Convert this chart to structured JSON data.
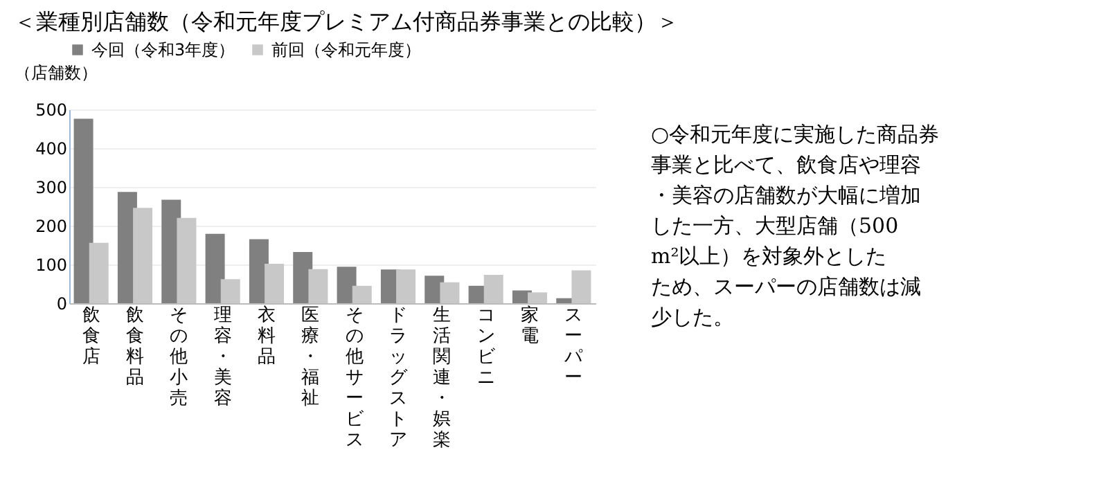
{
  "chart_data": {
    "type": "bar",
    "title": "＜業種別店舗数（令和元年度プレミアム付商品券事業との比較）＞",
    "ylabel": "（店舗数）",
    "categories": [
      "飲食店",
      "飲食料品",
      "その他小売",
      "理容・美容",
      "衣料品",
      "医療・福祉",
      "その他サービス",
      "ドラッグストア",
      "生活関連・娯楽",
      "コンビニ",
      "家電",
      "スーパー"
    ],
    "series": [
      {
        "name": "今回（令和3年度）",
        "color": "#808080",
        "values": [
          476,
          287,
          267,
          179,
          165,
          132,
          94,
          87,
          71,
          45,
          33,
          13
        ]
      },
      {
        "name": "前回（令和元年度）",
        "color": "#c8c8c8",
        "values": [
          156,
          246,
          220,
          62,
          102,
          88,
          45,
          87,
          54,
          73,
          28,
          85
        ]
      }
    ],
    "ylim": [
      0,
      500
    ],
    "yticks": [
      0,
      100,
      200,
      300,
      400,
      500
    ],
    "grid": "y",
    "legend": "top",
    "annotations": [
      "○令和元年度に実施した商品券事業と比べて、飲食店や理容・美容の店舗数が大幅に増加した一方、大型店舗（500 m²以上）を対象外としたため、スーパーの店舗数は減少した。"
    ]
  }
}
